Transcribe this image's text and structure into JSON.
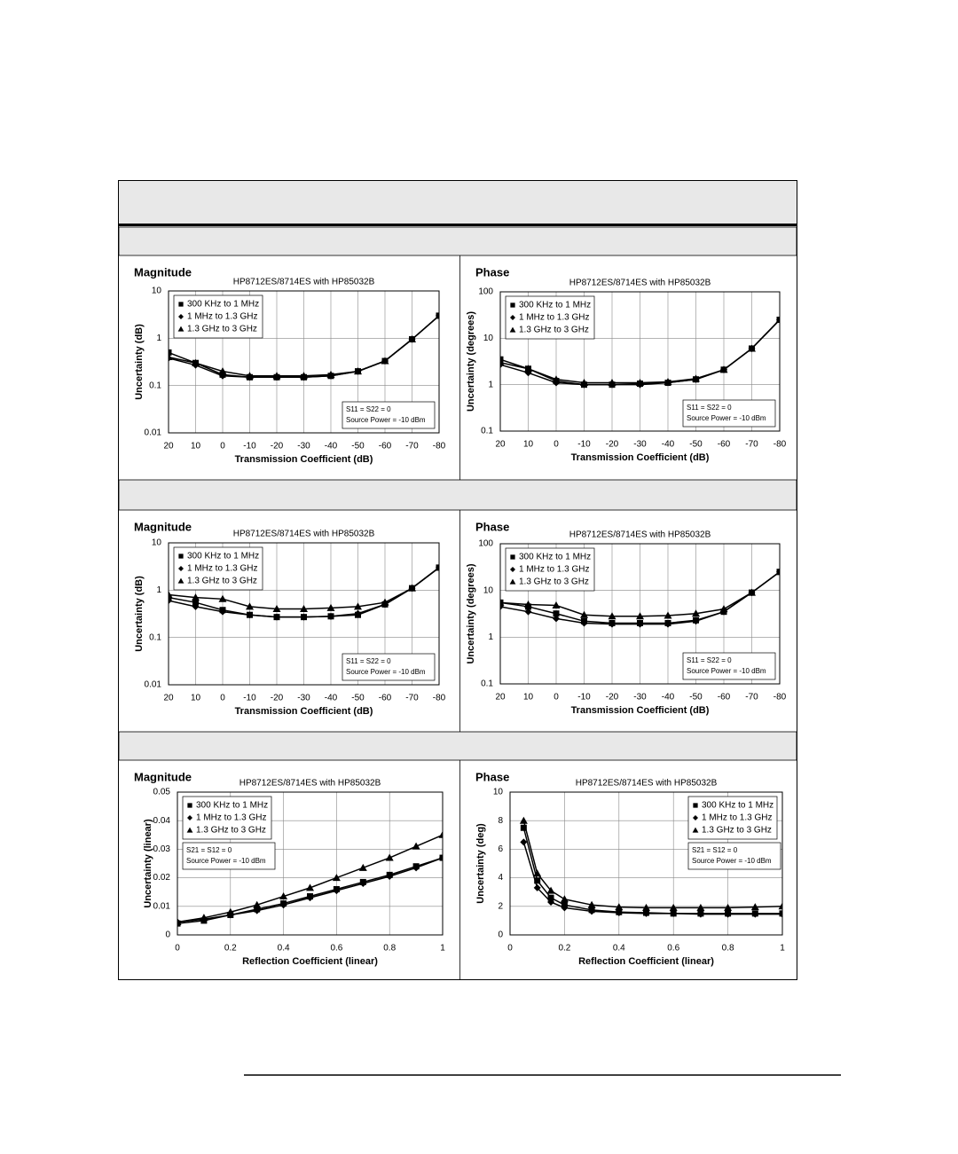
{
  "chart_data": [
    {
      "type": "line",
      "title": "Magnitude",
      "subtitle": "HP8712ES/8714ES with HP85032B",
      "xlabel": "Transmission Coefficient (dB)",
      "ylabel": "Uncertainty (dB)",
      "x": [
        20,
        10,
        0,
        -10,
        -20,
        -30,
        -40,
        -50,
        -60,
        -70,
        -80
      ],
      "xlim": [
        20,
        -80
      ],
      "xticks": [
        20,
        10,
        0,
        -10,
        -20,
        -30,
        -40,
        -50,
        -60,
        -70,
        -80
      ],
      "ylim": [
        0.01,
        10
      ],
      "yticks": [
        0.01,
        0.1,
        1,
        10
      ],
      "log_y": true,
      "grid": true,
      "legend": "upper left",
      "notes": [
        "S11 = S22 = 0",
        "Source Power = -10 dBm"
      ],
      "series": [
        {
          "name": "300 KHz to 1 MHz",
          "color": "#000000",
          "marker": "square",
          "values": [
            0.5,
            0.3,
            0.17,
            0.15,
            0.15,
            0.15,
            0.16,
            0.2,
            0.33,
            0.95,
            3
          ]
        },
        {
          "name": "1 MHz to 1.3 GHz",
          "color": "#000000",
          "marker": "diamond",
          "values": [
            0.38,
            0.27,
            0.16,
            0.15,
            0.15,
            0.15,
            0.16,
            0.2,
            0.33,
            0.95,
            3
          ]
        },
        {
          "name": "1.3 GHz to 3 GHz",
          "color": "#000000",
          "marker": "triangle",
          "values": [
            0.4,
            0.3,
            0.2,
            0.16,
            0.16,
            0.16,
            0.17,
            0.2,
            0.33,
            0.95,
            3
          ]
        }
      ]
    },
    {
      "type": "line",
      "title": "Phase",
      "subtitle": "HP8712ES/8714ES with HP85032B",
      "xlabel": "Transmission Coefficient (dB)",
      "ylabel": "Uncertainty (degrees)",
      "x": [
        20,
        10,
        0,
        -10,
        -20,
        -30,
        -40,
        -50,
        -60,
        -70,
        -80
      ],
      "xlim": [
        20,
        -80
      ],
      "xticks": [
        20,
        10,
        0,
        -10,
        -20,
        -30,
        -40,
        -50,
        -60,
        -70,
        -80
      ],
      "ylim": [
        0.1,
        100
      ],
      "yticks": [
        0.1,
        1,
        10,
        100
      ],
      "log_y": true,
      "grid": true,
      "legend": "upper left",
      "notes": [
        "S11 = S22 = 0",
        "Source Power = -10 dBm"
      ],
      "series": [
        {
          "name": "300 KHz to 1 MHz",
          "color": "#000000",
          "marker": "square",
          "values": [
            3.5,
            2.2,
            1.2,
            1.0,
            1.0,
            1.05,
            1.1,
            1.3,
            2.1,
            6,
            25
          ]
        },
        {
          "name": "1 MHz to 1.3 GHz",
          "color": "#000000",
          "marker": "diamond",
          "values": [
            2.7,
            1.8,
            1.1,
            1.0,
            1.0,
            1.0,
            1.1,
            1.3,
            2.1,
            6,
            25
          ]
        },
        {
          "name": "1.3 GHz to 3 GHz",
          "color": "#000000",
          "marker": "triangle",
          "values": [
            3,
            2.2,
            1.3,
            1.1,
            1.1,
            1.1,
            1.15,
            1.35,
            2.1,
            6,
            25
          ]
        }
      ]
    },
    {
      "type": "line",
      "title": "Magnitude",
      "subtitle": "HP8712ES/8714ES with HP85032B",
      "xlabel": "Transmission Coefficient (dB)",
      "ylabel": "Uncertainty (dB)",
      "x": [
        20,
        10,
        0,
        -10,
        -20,
        -30,
        -40,
        -50,
        -60,
        -70,
        -80
      ],
      "xlim": [
        20,
        -80
      ],
      "xticks": [
        20,
        10,
        0,
        -10,
        -20,
        -30,
        -40,
        -50,
        -60,
        -70,
        -80
      ],
      "ylim": [
        0.01,
        10
      ],
      "yticks": [
        0.01,
        0.1,
        1,
        10
      ],
      "log_y": true,
      "grid": true,
      "legend": "upper left",
      "notes": [
        "S11 = S22 = 0",
        "Source Power = -10 dBm"
      ],
      "series": [
        {
          "name": "300 KHz to 1 MHz",
          "color": "#000000",
          "marker": "square",
          "values": [
            0.7,
            0.55,
            0.38,
            0.3,
            0.27,
            0.27,
            0.28,
            0.3,
            0.5,
            1.1,
            3
          ]
        },
        {
          "name": "1 MHz to 1.3 GHz",
          "color": "#000000",
          "marker": "diamond",
          "values": [
            0.6,
            0.45,
            0.35,
            0.3,
            0.27,
            0.27,
            0.28,
            0.32,
            0.5,
            1.1,
            3
          ]
        },
        {
          "name": "1.3 GHz to 3 GHz",
          "color": "#000000",
          "marker": "triangle",
          "values": [
            0.8,
            0.7,
            0.65,
            0.45,
            0.4,
            0.4,
            0.42,
            0.45,
            0.55,
            1.1,
            3
          ]
        }
      ]
    },
    {
      "type": "line",
      "title": "Phase",
      "subtitle": "HP8712ES/8714ES with HP85032B",
      "xlabel": "Transmission Coefficient (dB)",
      "ylabel": "Uncertainty (degrees)",
      "x": [
        20,
        10,
        0,
        -10,
        -20,
        -30,
        -40,
        -50,
        -60,
        -70,
        -80
      ],
      "xlim": [
        20,
        -80
      ],
      "xticks": [
        20,
        10,
        0,
        -10,
        -20,
        -30,
        -40,
        -50,
        -60,
        -70,
        -80
      ],
      "ylim": [
        0.1,
        100
      ],
      "yticks": [
        0.1,
        1,
        10,
        100
      ],
      "log_y": true,
      "grid": true,
      "legend": "upper left",
      "notes": [
        "S11 = S22 = 0",
        "Source Power = -10 dBm"
      ],
      "series": [
        {
          "name": "300 KHz to 1 MHz",
          "color": "#000000",
          "marker": "square",
          "values": [
            5.5,
            4.5,
            3.2,
            2.2,
            2,
            2,
            2,
            2.3,
            3.5,
            9,
            25
          ]
        },
        {
          "name": "1 MHz to 1.3 GHz",
          "color": "#000000",
          "marker": "diamond",
          "values": [
            4.5,
            3.5,
            2.5,
            2,
            1.9,
            1.9,
            1.9,
            2.2,
            3.5,
            9,
            25
          ]
        },
        {
          "name": "1.3 GHz to 3 GHz",
          "color": "#000000",
          "marker": "triangle",
          "values": [
            5.5,
            5,
            4.8,
            3,
            2.8,
            2.8,
            2.9,
            3.2,
            4,
            9,
            25
          ]
        }
      ]
    },
    {
      "type": "line",
      "title": "Magnitude",
      "subtitle": "HP8712ES/8714ES with HP85032B",
      "xlabel": "Reflection Coefficient (linear)",
      "ylabel": "Uncertainty (linear)",
      "x": [
        0,
        0.1,
        0.2,
        0.3,
        0.4,
        0.5,
        0.6,
        0.7,
        0.8,
        0.9,
        1
      ],
      "xlim": [
        0,
        1
      ],
      "xticks": [
        0,
        0.2,
        0.4,
        0.6,
        0.8,
        1
      ],
      "ylim": [
        0,
        0.05
      ],
      "yticks": [
        0,
        0.01,
        0.02,
        0.03,
        0.04,
        0.05
      ],
      "log_y": false,
      "grid": true,
      "legend": "upper left",
      "notes": [
        "S21 = S12 = 0",
        "Source Power = -10 dBm"
      ],
      "series": [
        {
          "name": "300 KHz to 1 MHz",
          "color": "#000000",
          "marker": "square",
          "values": [
            0.004,
            0.005,
            0.007,
            0.009,
            0.011,
            0.0135,
            0.016,
            0.0185,
            0.021,
            0.024,
            0.027
          ]
        },
        {
          "name": "1 MHz to 1.3 GHz",
          "color": "#000000",
          "marker": "diamond",
          "values": [
            0.0045,
            0.0055,
            0.007,
            0.0085,
            0.0105,
            0.013,
            0.0155,
            0.018,
            0.0205,
            0.0235,
            0.027
          ]
        },
        {
          "name": "1.3 GHz to 3 GHz",
          "color": "#000000",
          "marker": "triangle",
          "values": [
            0.0045,
            0.006,
            0.008,
            0.0105,
            0.0135,
            0.0165,
            0.02,
            0.0235,
            0.027,
            0.031,
            0.035
          ]
        }
      ]
    },
    {
      "type": "line",
      "title": "Phase",
      "subtitle": "HP8712ES/8714ES with HP85032B",
      "xlabel": "Reflection Coefficient (linear)",
      "ylabel": "Uncertainty (deg)",
      "x": [
        0.05,
        0.1,
        0.15,
        0.2,
        0.3,
        0.4,
        0.5,
        0.6,
        0.7,
        0.8,
        0.9,
        1
      ],
      "xlim": [
        0,
        1
      ],
      "xticks": [
        0,
        0.2,
        0.4,
        0.6,
        0.8,
        1
      ],
      "ylim": [
        0,
        10
      ],
      "yticks": [
        0,
        2,
        4,
        6,
        8,
        10
      ],
      "log_y": false,
      "grid": true,
      "legend": "upper right",
      "notes": [
        "S21 = S12 = 0",
        "Source Power = -10 dBm"
      ],
      "series": [
        {
          "name": "300 KHz to 1 MHz",
          "color": "#000000",
          "marker": "square",
          "values": [
            7.5,
            3.8,
            2.6,
            2.1,
            1.75,
            1.6,
            1.55,
            1.5,
            1.5,
            1.5,
            1.5,
            1.5
          ]
        },
        {
          "name": "1 MHz to 1.3 GHz",
          "color": "#000000",
          "marker": "diamond",
          "values": [
            6.5,
            3.3,
            2.3,
            1.9,
            1.65,
            1.55,
            1.5,
            1.5,
            1.45,
            1.45,
            1.45,
            1.45
          ]
        },
        {
          "name": "1.3 GHz to 3 GHz",
          "color": "#000000",
          "marker": "triangle",
          "values": [
            8,
            4.3,
            3.1,
            2.5,
            2.1,
            1.95,
            1.9,
            1.9,
            1.9,
            1.9,
            1.95,
            2
          ]
        }
      ]
    }
  ]
}
